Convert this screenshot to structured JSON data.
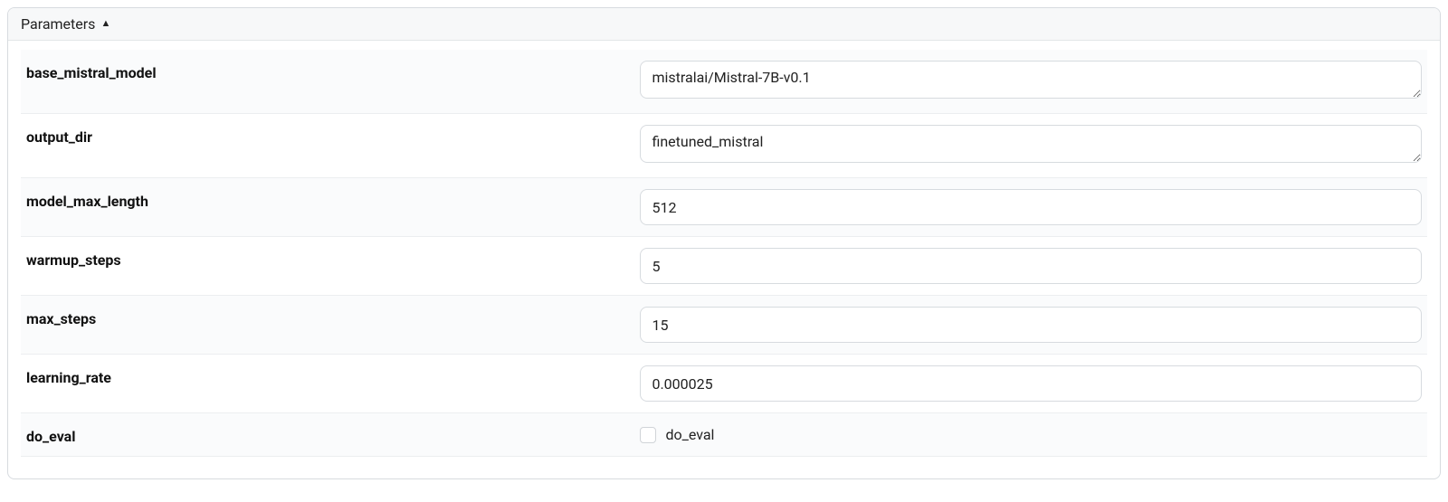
{
  "panel": {
    "title": "Parameters",
    "collapsed": false
  },
  "params": {
    "base_mistral_model": {
      "label": "base_mistral_model",
      "value": "mistralai/Mistral-7B-v0.1",
      "type": "text"
    },
    "output_dir": {
      "label": "output_dir",
      "value": "finetuned_mistral",
      "type": "text"
    },
    "model_max_length": {
      "label": "model_max_length",
      "value": "512",
      "type": "number"
    },
    "warmup_steps": {
      "label": "warmup_steps",
      "value": "5",
      "type": "number"
    },
    "max_steps": {
      "label": "max_steps",
      "value": "15",
      "type": "number"
    },
    "learning_rate": {
      "label": "learning_rate",
      "value": "0.000025",
      "type": "number"
    },
    "do_eval": {
      "label": "do_eval",
      "checkbox_label": "do_eval",
      "checked": false,
      "type": "checkbox"
    }
  },
  "colors": {
    "border": "#d7dbdf",
    "header_bg": "#f7f8f9",
    "row_alt_bg": "#fafbfc",
    "text": "#111111"
  }
}
